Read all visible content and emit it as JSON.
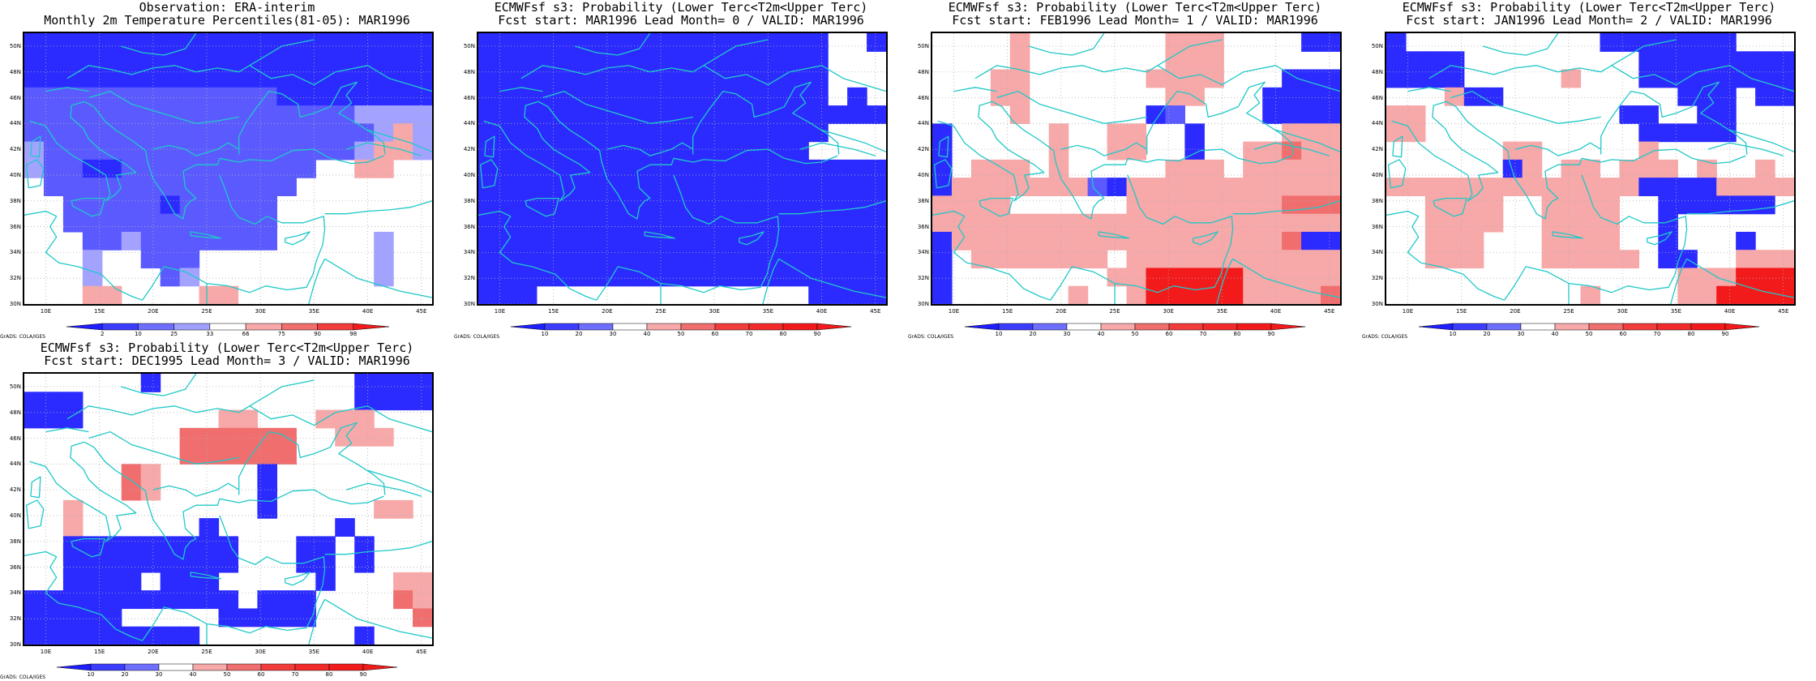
{
  "colors": {
    "deep_blue": "#2b2bff",
    "mid_blue": "#5a5aff",
    "light_blue": "#a3a3ff",
    "pale_red": "#f7a8a8",
    "mid_red": "#f06e6e",
    "deep_red": "#f21a1a",
    "coast": "#20c8c8",
    "grid": "#b0b0b0"
  },
  "axes": {
    "lon_labels": [
      "10E",
      "15E",
      "20E",
      "25E",
      "30E",
      "35E",
      "40E",
      "45E"
    ],
    "lat_labels": [
      "50N",
      "48N",
      "46N",
      "44N",
      "42N",
      "40N",
      "38N",
      "36N",
      "34N",
      "32N",
      "30N"
    ]
  },
  "credit": "GrADS: COLA/IGES",
  "panels": [
    {
      "title1": "Observation: ERA-interim",
      "title2": "Monthly 2m Temperature Percentiles(81-05): MAR1996",
      "colorbar": {
        "labels": [
          "2",
          "10",
          "25",
          "33",
          "66",
          "75",
          "90",
          "98"
        ],
        "colors": [
          "#1e1eff",
          "#3c3cff",
          "#6e6eff",
          "#a0a0ff",
          "#ffffff",
          "#f7a8a8",
          "#f06e6e",
          "#f23c3c",
          "#f21a1a"
        ]
      },
      "grid_rows": [
        "BBBBBBBBBBBBBBBBBBBBB",
        "BBBBBBBBBBBBBBBBBBBBB",
        "BBBBBBBBBBBBBBBBBBBBB",
        "bbbbbbbbbbbbbBBBBBBBB",
        "bbbbbbbbbbbbbbbbbLLLL",
        "bbbbbbbbbbbbbbbbbbLrL",
        "LbbbbbbbbbbbbbbbbLrrL",
        "LbbMMbbbbbbbbbb..rr..",
        ".bbbbbbbbbbbbb.......",
        "..bbbbbMbbbbb........",
        "..bbbbbbbbbbb........",
        "...bbLbbbbbbb.....L..",
        "...L..bbb.........L..",
        "...L...bL.........L..",
        "...rr....rr.........."
      ]
    },
    {
      "title1": "ECMWFsf s3: Probability (Lower Terc<T2m<Upper Terc)",
      "title2": "Fcst start: MAR1996   Lead Month= 0 / VALID: MAR1996",
      "colorbar": {
        "labels": [
          "10",
          "20",
          "30",
          "40",
          "50",
          "60",
          "70",
          "80",
          "90"
        ],
        "colors": [
          "#1e1eff",
          "#3c3cff",
          "#6e6eff",
          "#ffffff",
          "#f7a8a8",
          "#f06e6e",
          "#f23c3c",
          "#f22a2a",
          "#f21a1a",
          "#f21a1a"
        ]
      },
      "grid_rows": [
        "BBBBBBBBBBBBBBBBBB..B",
        "BBBBBBBBBBBBBBBBBB...",
        "BBBBBBBBBBBBBBBBBB...",
        "BBBBBBBBBBBBBBBBBB.B.",
        "BBBBBBBBBBBBBBBBBBBBB",
        "BBBBBBBBBBBBBBBBBB...",
        "BBBBBBBBBBBBBBBBB....",
        "BBBBBBBBBBBBBBBBBBBBB",
        "BBBBBBBBBBBBBBBBBBBBB",
        "BBBBBBBBBBBBBBBBBBBBB",
        "BBBBBBBBBBBBBBBBBBBBB",
        "BBBBBBBBBBBBBBBBBBBBB",
        "BBBBBBBBBBBBBBBBBBBBB",
        "BBBBBBBBBBBBBBBBBBBBB",
        "BBB..............BBBB"
      ]
    },
    {
      "title1": "ECMWFsf s3: Probability (Lower Terc<T2m<Upper Terc)",
      "title2": "Fcst start: FEB1996   Lead Month= 1 / VALID: MAR1996",
      "colorbar": {
        "labels": [
          "10",
          "20",
          "30",
          "40",
          "50",
          "60",
          "70",
          "80",
          "90"
        ],
        "colors": [
          "#1e1eff",
          "#3c3cff",
          "#6e6eff",
          "#ffffff",
          "#f7a8a8",
          "#f06e6e",
          "#f23c3c",
          "#f22a2a",
          "#f21a1a",
          "#f21a1a"
        ]
      },
      "grid_rows": [
        "....r.......rrr....BB",
        "....r.......rrr......",
        "...rr......rrrr...BBB",
        "...rr.......rr...BBBB",
        "....r......Bb....BBBB",
        "B.....r..rr..B....rrr",
        "B.....r..rr..B..rrmrr",
        "B.rrr.r.....rrr.rrrrr",
        "BrrrrrrrbBrrrrrrrrrrr",
        "rrrr......rrrrrrrrmmm",
        "rrrrrrrrrrrrrrrrrrrrr",
        "BrrrrrrrrrrrrrrrrrmBB",
        "B.rrrrrrr.rrrrrrrrrrr",
        "B........rrRRRRRrrrrr",
        "B......r..rRRRRRrrrrm"
      ]
    },
    {
      "title1": "ECMWFsf s3: Probability (Lower Terc<T2m<Upper Terc)",
      "title2": "Fcst start: JAN1996   Lead Month= 2 / VALID: MAR1996",
      "colorbar": {
        "labels": [
          "10",
          "20",
          "30",
          "40",
          "50",
          "60",
          "70",
          "80",
          "90"
        ],
        "colors": [
          "#1e1eff",
          "#3c3cff",
          "#6e6eff",
          "#ffffff",
          "#f7a8a8",
          "#f06e6e",
          "#f23c3c",
          "#f22a2a",
          "#f21a1a",
          "#f21a1a"
        ]
      },
      "grid_rows": [
        "B..........BBBBBBB...",
        "BBBB.........BBBBBBBB",
        "BBBB.....r...BBBBBBBB",
        "...rBB.........BBB.BB",
        "rr..........BB..BB...",
        "rr...........BBBBB...",
        "......rr.....r.......",
        "......Br.rr.rrr.r..r.",
        "rrrrrrrrrrrrrBBBBrrrr",
        "..rrrr..rrrr..BBBBBB.",
        "..rrrr..rrrr..B......",
        "..rrr...rrrr..B...B..",
        "..rrr...rrrrr.BB..rrr",
        "...............rrrRRR",
        "..........r....rrRRRR"
      ]
    },
    {
      "title1": "ECMWFsf s3: Probability (Lower Terc<T2m<Upper Terc)",
      "title2": "Fcst start: DEC1995   Lead Month= 3 / VALID: MAR1996",
      "colorbar": {
        "labels": [
          "10",
          "20",
          "30",
          "40",
          "50",
          "60",
          "70",
          "80",
          "90"
        ],
        "colors": [
          "#1e1eff",
          "#3c3cff",
          "#6e6eff",
          "#ffffff",
          "#f7a8a8",
          "#f06e6e",
          "#f23c3c",
          "#f22a2a",
          "#f21a1a",
          "#f21a1a"
        ]
      },
      "grid_rows": [
        "......B..........BBBB",
        "BBB..............BBBB",
        "BBB.......rr...rrr...",
        "........mmmmmm..rrr..",
        "........mmmmmm.......",
        ".....mr.....B........",
        ".....mr.....B........",
        "..r.........B.....rr.",
        "..r......B......B....",
        "..BBBBBBBBB...BB.B...",
        "..BBBBBBBBB...BB.B...",
        "..BBBB.BBB.....B...rr",
        "BBBBBBBBBBB.BBB....mr",
        "BBBBB.....BBBBB.....m",
        "BBBBBBBBB........B..."
      ]
    }
  ]
}
